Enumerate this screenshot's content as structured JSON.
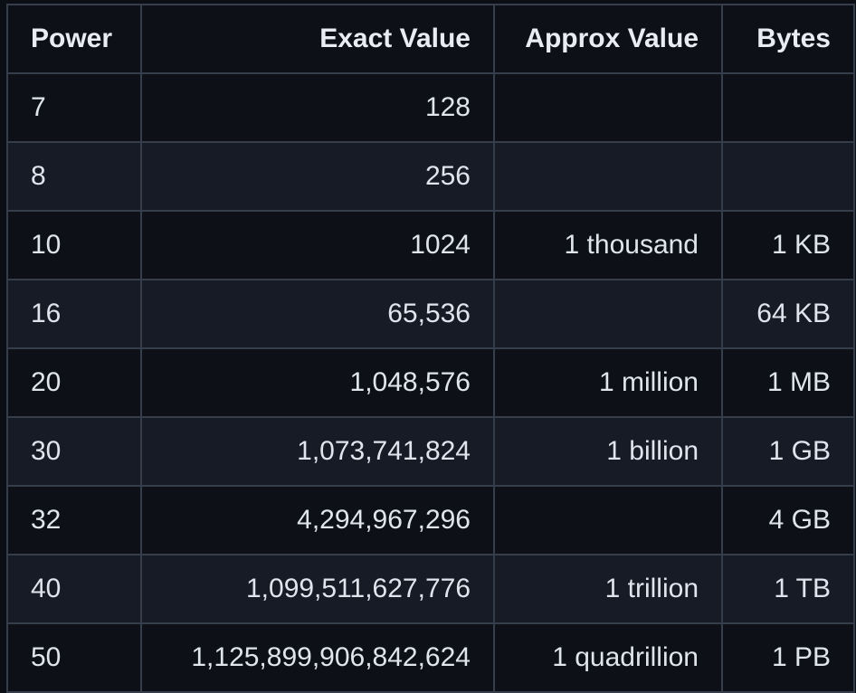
{
  "chart_data": {
    "type": "table",
    "columns": [
      "Power",
      "Exact Value",
      "Approx Value",
      "Bytes"
    ],
    "column_align": [
      "left",
      "right",
      "right",
      "right"
    ],
    "rows": [
      [
        "7",
        "128",
        "",
        ""
      ],
      [
        "8",
        "256",
        "",
        ""
      ],
      [
        "10",
        "1024",
        "1 thousand",
        "1 KB"
      ],
      [
        "16",
        "65,536",
        "",
        "64 KB"
      ],
      [
        "20",
        "1,048,576",
        "1 million",
        "1 MB"
      ],
      [
        "30",
        "1,073,741,824",
        "1 billion",
        "1 GB"
      ],
      [
        "32",
        "4,294,967,296",
        "",
        "4 GB"
      ],
      [
        "40",
        "1,099,511,627,776",
        "1 trillion",
        "1 TB"
      ],
      [
        "50",
        "1,125,899,906,842,624",
        "1 quadrillion",
        "1 PB"
      ]
    ]
  },
  "colors": {
    "page_background": "#0b0e14",
    "row_dark": "#0d1117",
    "row_light": "#161b26",
    "grid_border": "#363d4b",
    "header_text": "#e9ecf2",
    "cell_text": "#e0e4ec"
  }
}
